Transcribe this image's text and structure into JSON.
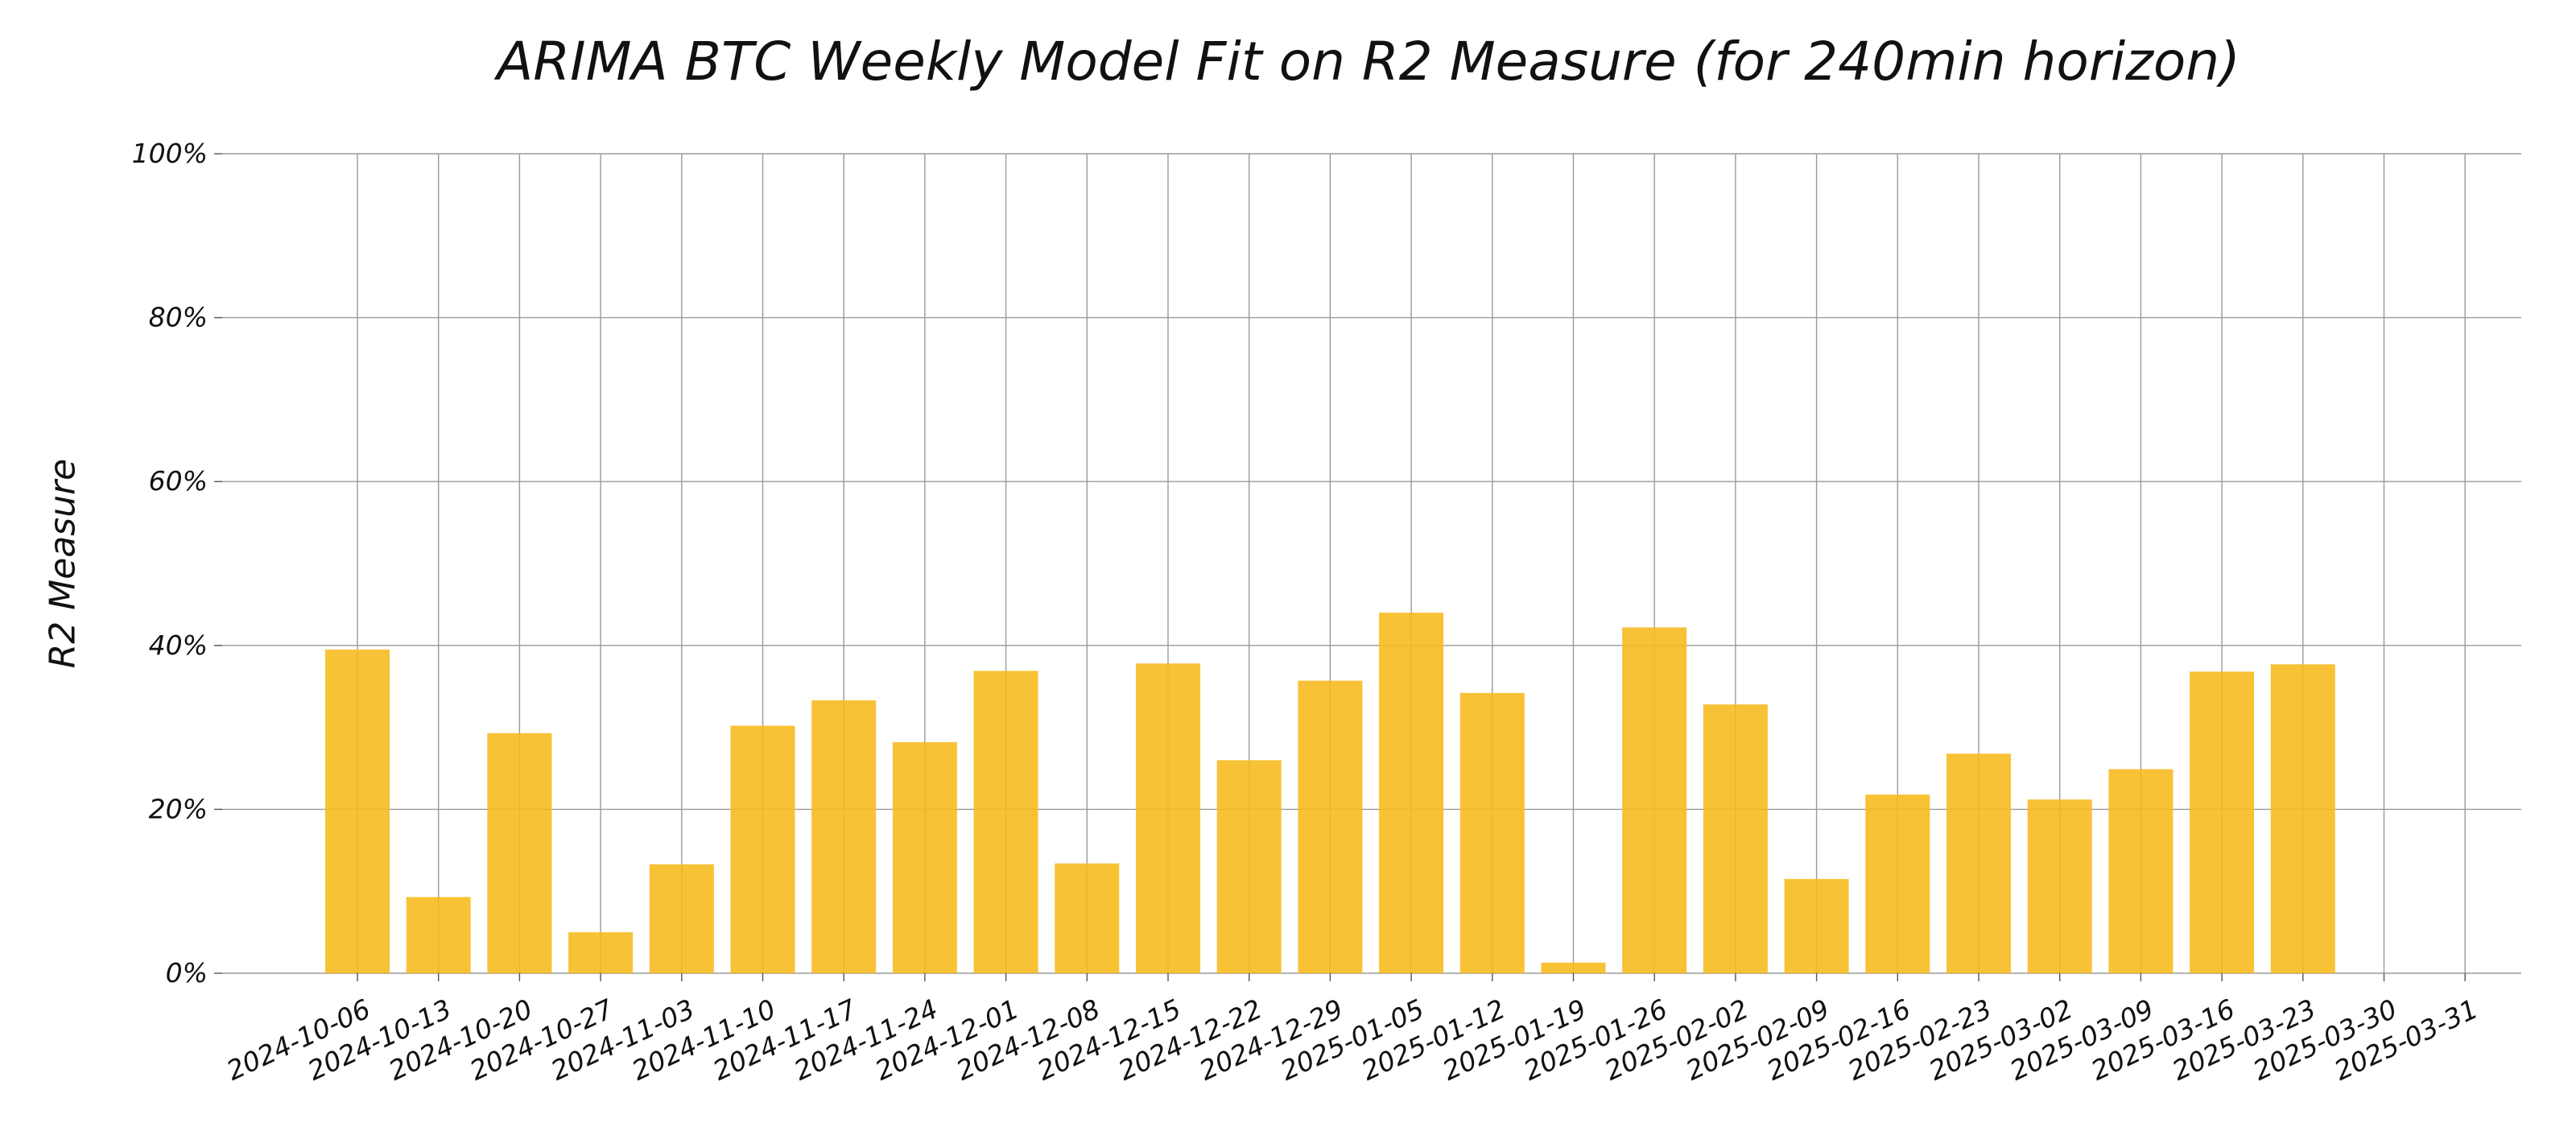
{
  "chart_data": {
    "type": "bar",
    "title": "ARIMA BTC Weekly Model Fit on R2 Measure (for 240min horizon)",
    "xlabel": "",
    "ylabel": "R2 Measure",
    "ylim": [
      0,
      100
    ],
    "y_ticks": [
      "0%",
      "20%",
      "40%",
      "60%",
      "80%",
      "100%"
    ],
    "grid": true,
    "bar_color": "#F7BA1A",
    "categories": [
      "2024-10-06",
      "2024-10-13",
      "2024-10-20",
      "2024-10-27",
      "2024-11-03",
      "2024-11-10",
      "2024-11-17",
      "2024-11-24",
      "2024-12-01",
      "2024-12-08",
      "2024-12-15",
      "2024-12-22",
      "2024-12-29",
      "2025-01-05",
      "2025-01-12",
      "2025-01-19",
      "2025-01-26",
      "2025-02-02",
      "2025-02-09",
      "2025-02-16",
      "2025-02-23",
      "2025-03-02",
      "2025-03-09",
      "2025-03-16",
      "2025-03-23",
      "2025-03-30",
      "2025-03-31"
    ],
    "values": [
      39.5,
      9.3,
      29.3,
      5.0,
      13.3,
      30.2,
      33.3,
      28.2,
      36.9,
      13.4,
      37.8,
      26.0,
      35.7,
      44.0,
      34.2,
      1.3,
      42.2,
      32.8,
      11.5,
      21.8,
      26.8,
      21.2,
      24.9,
      36.8,
      37.7,
      null,
      null
    ]
  }
}
